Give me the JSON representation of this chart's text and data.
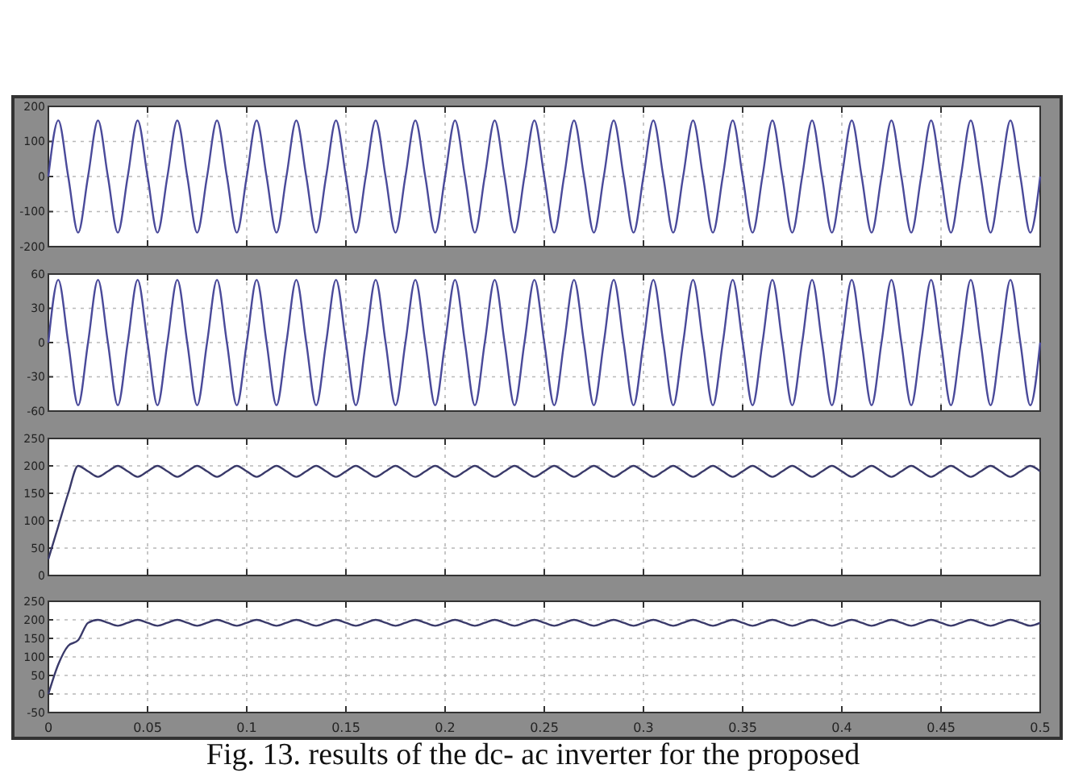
{
  "chart_data": [
    {
      "type": "line",
      "x": [
        0,
        0.005,
        0.01,
        0.015,
        0.02,
        0.025,
        0.03,
        0.035,
        0.04,
        0.045,
        0.05,
        0.055,
        0.06,
        0.065,
        0.07,
        0.075,
        0.08,
        0.085,
        0.09,
        0.095,
        0.1,
        0.105,
        0.11,
        0.115,
        0.12,
        0.125,
        0.13,
        0.135,
        0.14,
        0.145,
        0.15,
        0.155,
        0.16,
        0.165,
        0.17,
        0.175,
        0.18,
        0.185,
        0.19,
        0.195,
        0.2,
        0.205,
        0.21,
        0.215,
        0.22,
        0.225,
        0.23,
        0.235,
        0.24,
        0.245,
        0.25,
        0.255,
        0.26,
        0.265,
        0.27,
        0.275,
        0.28,
        0.285,
        0.29,
        0.295,
        0.3,
        0.305,
        0.31,
        0.315,
        0.32,
        0.325,
        0.33,
        0.335,
        0.34,
        0.345,
        0.35,
        0.355,
        0.36,
        0.365,
        0.37,
        0.375,
        0.38,
        0.385,
        0.39,
        0.395,
        0.4,
        0.405,
        0.41,
        0.415,
        0.42,
        0.425,
        0.43,
        0.435,
        0.44,
        0.445,
        0.45,
        0.455,
        0.46,
        0.465,
        0.47,
        0.475,
        0.48,
        0.485,
        0.49,
        0.495,
        0.5
      ],
      "series": [
        {
          "color": "#4a4a9a",
          "values": [
            0,
            160,
            0,
            -160,
            0,
            160,
            0,
            -160,
            0,
            160,
            0,
            -160,
            0,
            160,
            0,
            -160,
            0,
            160,
            0,
            -160,
            0,
            160,
            0,
            -160,
            0,
            160,
            0,
            -160,
            0,
            160,
            0,
            -160,
            0,
            160,
            0,
            -160,
            0,
            160,
            0,
            -160,
            0,
            160,
            0,
            -160,
            0,
            160,
            0,
            -160,
            0,
            160,
            0,
            -160,
            0,
            160,
            0,
            -160,
            0,
            160,
            0,
            -160,
            0,
            160,
            0,
            -160,
            0,
            160,
            0,
            -160,
            0,
            160,
            0,
            -160,
            0,
            160,
            0,
            -160,
            0,
            160,
            0,
            -160,
            0,
            160,
            0,
            -160,
            0,
            160,
            0,
            -160,
            0,
            160,
            0,
            -160,
            0,
            160,
            0,
            -160,
            0,
            160,
            0,
            -160,
            0
          ]
        }
      ],
      "xlim": [
        0,
        0.5
      ],
      "xticks": [
        0,
        0.05,
        0.1,
        0.15,
        0.2,
        0.25,
        0.3,
        0.35,
        0.4,
        0.45,
        0.5
      ],
      "ylim": [
        -200,
        200
      ],
      "yticks": [
        -200,
        -100,
        0,
        100,
        200
      ],
      "grid": true,
      "tick_labels": "y"
    },
    {
      "type": "line",
      "x": [
        0,
        0.005,
        0.01,
        0.015,
        0.02,
        0.025,
        0.03,
        0.035,
        0.04,
        0.045,
        0.05,
        0.055,
        0.06,
        0.065,
        0.07,
        0.075,
        0.08,
        0.085,
        0.09,
        0.095,
        0.1,
        0.105,
        0.11,
        0.115,
        0.12,
        0.125,
        0.13,
        0.135,
        0.14,
        0.145,
        0.15,
        0.155,
        0.16,
        0.165,
        0.17,
        0.175,
        0.18,
        0.185,
        0.19,
        0.195,
        0.2,
        0.205,
        0.21,
        0.215,
        0.22,
        0.225,
        0.23,
        0.235,
        0.24,
        0.245,
        0.25,
        0.255,
        0.26,
        0.265,
        0.27,
        0.275,
        0.28,
        0.285,
        0.29,
        0.295,
        0.3,
        0.305,
        0.31,
        0.315,
        0.32,
        0.325,
        0.33,
        0.335,
        0.34,
        0.345,
        0.35,
        0.355,
        0.36,
        0.365,
        0.37,
        0.375,
        0.38,
        0.385,
        0.39,
        0.395,
        0.4,
        0.405,
        0.41,
        0.415,
        0.42,
        0.425,
        0.43,
        0.435,
        0.44,
        0.445,
        0.45,
        0.455,
        0.46,
        0.465,
        0.47,
        0.475,
        0.48,
        0.485,
        0.49,
        0.495,
        0.5
      ],
      "series": [
        {
          "color": "#4a4a9a",
          "values": [
            0,
            55,
            0,
            -55,
            0,
            55,
            0,
            -55,
            0,
            55,
            0,
            -55,
            0,
            55,
            0,
            -55,
            0,
            55,
            0,
            -55,
            0,
            55,
            0,
            -55,
            0,
            55,
            0,
            -55,
            0,
            55,
            0,
            -55,
            0,
            55,
            0,
            -55,
            0,
            55,
            0,
            -55,
            0,
            55,
            0,
            -55,
            0,
            55,
            0,
            -55,
            0,
            55,
            0,
            -55,
            0,
            55,
            0,
            -55,
            0,
            55,
            0,
            -55,
            0,
            55,
            0,
            -55,
            0,
            55,
            0,
            -55,
            0,
            55,
            0,
            -55,
            0,
            55,
            0,
            -55,
            0,
            55,
            0,
            -55,
            0,
            55,
            0,
            -55,
            0,
            55,
            0,
            -55,
            0,
            55,
            0,
            -55,
            0,
            55,
            0,
            -55,
            0,
            55,
            0,
            -55,
            0
          ]
        }
      ],
      "xlim": [
        0,
        0.5
      ],
      "xticks": [
        0,
        0.05,
        0.1,
        0.15,
        0.2,
        0.25,
        0.3,
        0.35,
        0.4,
        0.45,
        0.5
      ],
      "ylim": [
        -60,
        60
      ],
      "yticks": [
        -60,
        -30,
        0,
        30,
        60
      ],
      "grid": true,
      "tick_labels": "y"
    },
    {
      "type": "line",
      "x": [
        0,
        0.005,
        0.01,
        0.015,
        0.02,
        0.025,
        0.03,
        0.035,
        0.04,
        0.045,
        0.05,
        0.055,
        0.06,
        0.065,
        0.07,
        0.075,
        0.08,
        0.085,
        0.09,
        0.095,
        0.1,
        0.105,
        0.11,
        0.115,
        0.12,
        0.125,
        0.13,
        0.135,
        0.14,
        0.145,
        0.15,
        0.155,
        0.16,
        0.165,
        0.17,
        0.175,
        0.18,
        0.185,
        0.19,
        0.195,
        0.2,
        0.205,
        0.21,
        0.215,
        0.22,
        0.225,
        0.23,
        0.235,
        0.24,
        0.245,
        0.25,
        0.255,
        0.26,
        0.265,
        0.27,
        0.275,
        0.28,
        0.285,
        0.29,
        0.295,
        0.3,
        0.305,
        0.31,
        0.315,
        0.32,
        0.325,
        0.33,
        0.335,
        0.34,
        0.345,
        0.35,
        0.355,
        0.36,
        0.365,
        0.37,
        0.375,
        0.38,
        0.385,
        0.39,
        0.395,
        0.4,
        0.405,
        0.41,
        0.415,
        0.42,
        0.425,
        0.43,
        0.435,
        0.44,
        0.445,
        0.45,
        0.455,
        0.46,
        0.465,
        0.47,
        0.475,
        0.48,
        0.485,
        0.49,
        0.495,
        0.5
      ],
      "series": [
        {
          "color": "#3a3a6a",
          "values": [
            30,
            90,
            150,
            200,
            190,
            180,
            190,
            200,
            190,
            180,
            190,
            200,
            190,
            180,
            190,
            200,
            190,
            180,
            190,
            200,
            190,
            180,
            190,
            200,
            190,
            180,
            190,
            200,
            190,
            180,
            190,
            200,
            190,
            180,
            190,
            200,
            190,
            180,
            190,
            200,
            190,
            180,
            190,
            200,
            190,
            180,
            190,
            200,
            190,
            180,
            190,
            200,
            190,
            180,
            190,
            200,
            190,
            180,
            190,
            200,
            190,
            180,
            190,
            200,
            190,
            180,
            190,
            200,
            190,
            180,
            190,
            200,
            190,
            180,
            190,
            200,
            190,
            180,
            190,
            200,
            190,
            180,
            190,
            200,
            190,
            180,
            190,
            200,
            190,
            180,
            190,
            200,
            190,
            180,
            190,
            200,
            190,
            180,
            190,
            200,
            190
          ]
        }
      ],
      "xlim": [
        0,
        0.5
      ],
      "xticks": [
        0,
        0.05,
        0.1,
        0.15,
        0.2,
        0.25,
        0.3,
        0.35,
        0.4,
        0.45,
        0.5
      ],
      "ylim": [
        0,
        250
      ],
      "yticks": [
        0,
        50,
        100,
        150,
        200,
        250
      ],
      "grid": true,
      "tick_labels": "y"
    },
    {
      "type": "line",
      "x": [
        0,
        0.005,
        0.01,
        0.015,
        0.02,
        0.025,
        0.03,
        0.035,
        0.04,
        0.045,
        0.05,
        0.055,
        0.06,
        0.065,
        0.07,
        0.075,
        0.08,
        0.085,
        0.09,
        0.095,
        0.1,
        0.105,
        0.11,
        0.115,
        0.12,
        0.125,
        0.13,
        0.135,
        0.14,
        0.145,
        0.15,
        0.155,
        0.16,
        0.165,
        0.17,
        0.175,
        0.18,
        0.185,
        0.19,
        0.195,
        0.2,
        0.205,
        0.21,
        0.215,
        0.22,
        0.225,
        0.23,
        0.235,
        0.24,
        0.245,
        0.25,
        0.255,
        0.26,
        0.265,
        0.27,
        0.275,
        0.28,
        0.285,
        0.29,
        0.295,
        0.3,
        0.305,
        0.31,
        0.315,
        0.32,
        0.325,
        0.33,
        0.335,
        0.34,
        0.345,
        0.35,
        0.355,
        0.36,
        0.365,
        0.37,
        0.375,
        0.38,
        0.385,
        0.39,
        0.395,
        0.4,
        0.405,
        0.41,
        0.415,
        0.42,
        0.425,
        0.43,
        0.435,
        0.44,
        0.445,
        0.45,
        0.455,
        0.46,
        0.465,
        0.47,
        0.475,
        0.48,
        0.485,
        0.49,
        0.495,
        0.5
      ],
      "series": [
        {
          "color": "#3a3a6a",
          "values": [
            0,
            80,
            130,
            145,
            192,
            200,
            192,
            184,
            192,
            200,
            192,
            184,
            192,
            200,
            192,
            184,
            192,
            200,
            192,
            184,
            192,
            200,
            192,
            184,
            192,
            200,
            192,
            184,
            192,
            200,
            192,
            184,
            192,
            200,
            192,
            184,
            192,
            200,
            192,
            184,
            192,
            200,
            192,
            184,
            192,
            200,
            192,
            184,
            192,
            200,
            192,
            184,
            192,
            200,
            192,
            184,
            192,
            200,
            192,
            184,
            192,
            200,
            192,
            184,
            192,
            200,
            192,
            184,
            192,
            200,
            192,
            184,
            192,
            200,
            192,
            184,
            192,
            200,
            192,
            184,
            192,
            200,
            192,
            184,
            192,
            200,
            192,
            184,
            192,
            200,
            192,
            184,
            192,
            200,
            192,
            184,
            192,
            200,
            192,
            184,
            192
          ]
        }
      ],
      "xlim": [
        0,
        0.5
      ],
      "xticks": [
        0,
        0.05,
        0.1,
        0.15,
        0.2,
        0.25,
        0.3,
        0.35,
        0.4,
        0.45,
        0.5
      ],
      "ylim": [
        -50,
        250
      ],
      "yticks": [
        -50,
        0,
        50,
        100,
        150,
        200,
        250
      ],
      "grid": true,
      "annotations": [
        "Fig. 13. results of the dc- ac inverter for the proposed"
      ]
    }
  ]
}
